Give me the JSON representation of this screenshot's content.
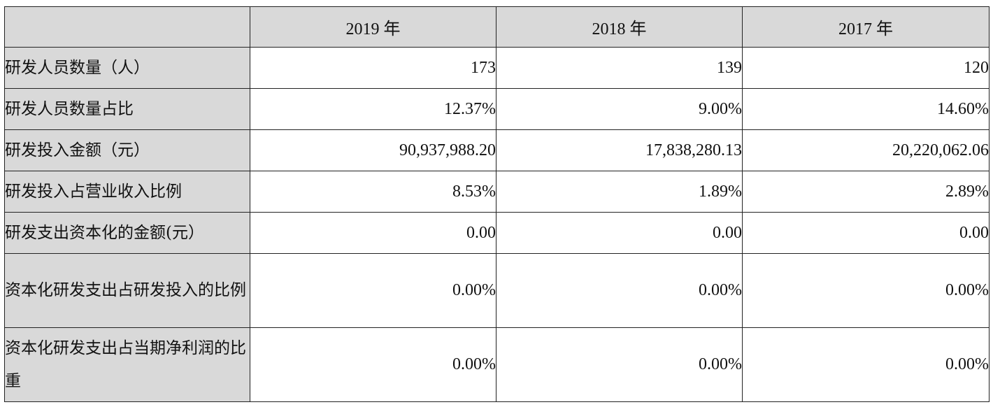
{
  "table": {
    "header": {
      "corner": "",
      "years": [
        "2019 年",
        "2018 年",
        "2017 年"
      ]
    },
    "rows": [
      {
        "label": "研发人员数量（人）",
        "values": [
          "173",
          "139",
          "120"
        ]
      },
      {
        "label": "研发人员数量占比",
        "values": [
          "12.37%",
          "9.00%",
          "14.60%"
        ]
      },
      {
        "label": "研发投入金额（元）",
        "values": [
          "90,937,988.20",
          "17,838,280.13",
          "20,220,062.06"
        ]
      },
      {
        "label": "研发投入占营业收入比例",
        "values": [
          "8.53%",
          "1.89%",
          "2.89%"
        ]
      },
      {
        "label": "研发支出资本化的金额(元）",
        "values": [
          "0.00",
          "0.00",
          "0.00"
        ]
      },
      {
        "label": "资本化研发支出占研发投入的比例",
        "values": [
          "0.00%",
          "0.00%",
          "0.00%"
        ]
      },
      {
        "label": "资本化研发支出占当期净利润的比重",
        "values": [
          "0.00%",
          "0.00%",
          "0.00%"
        ]
      }
    ]
  }
}
